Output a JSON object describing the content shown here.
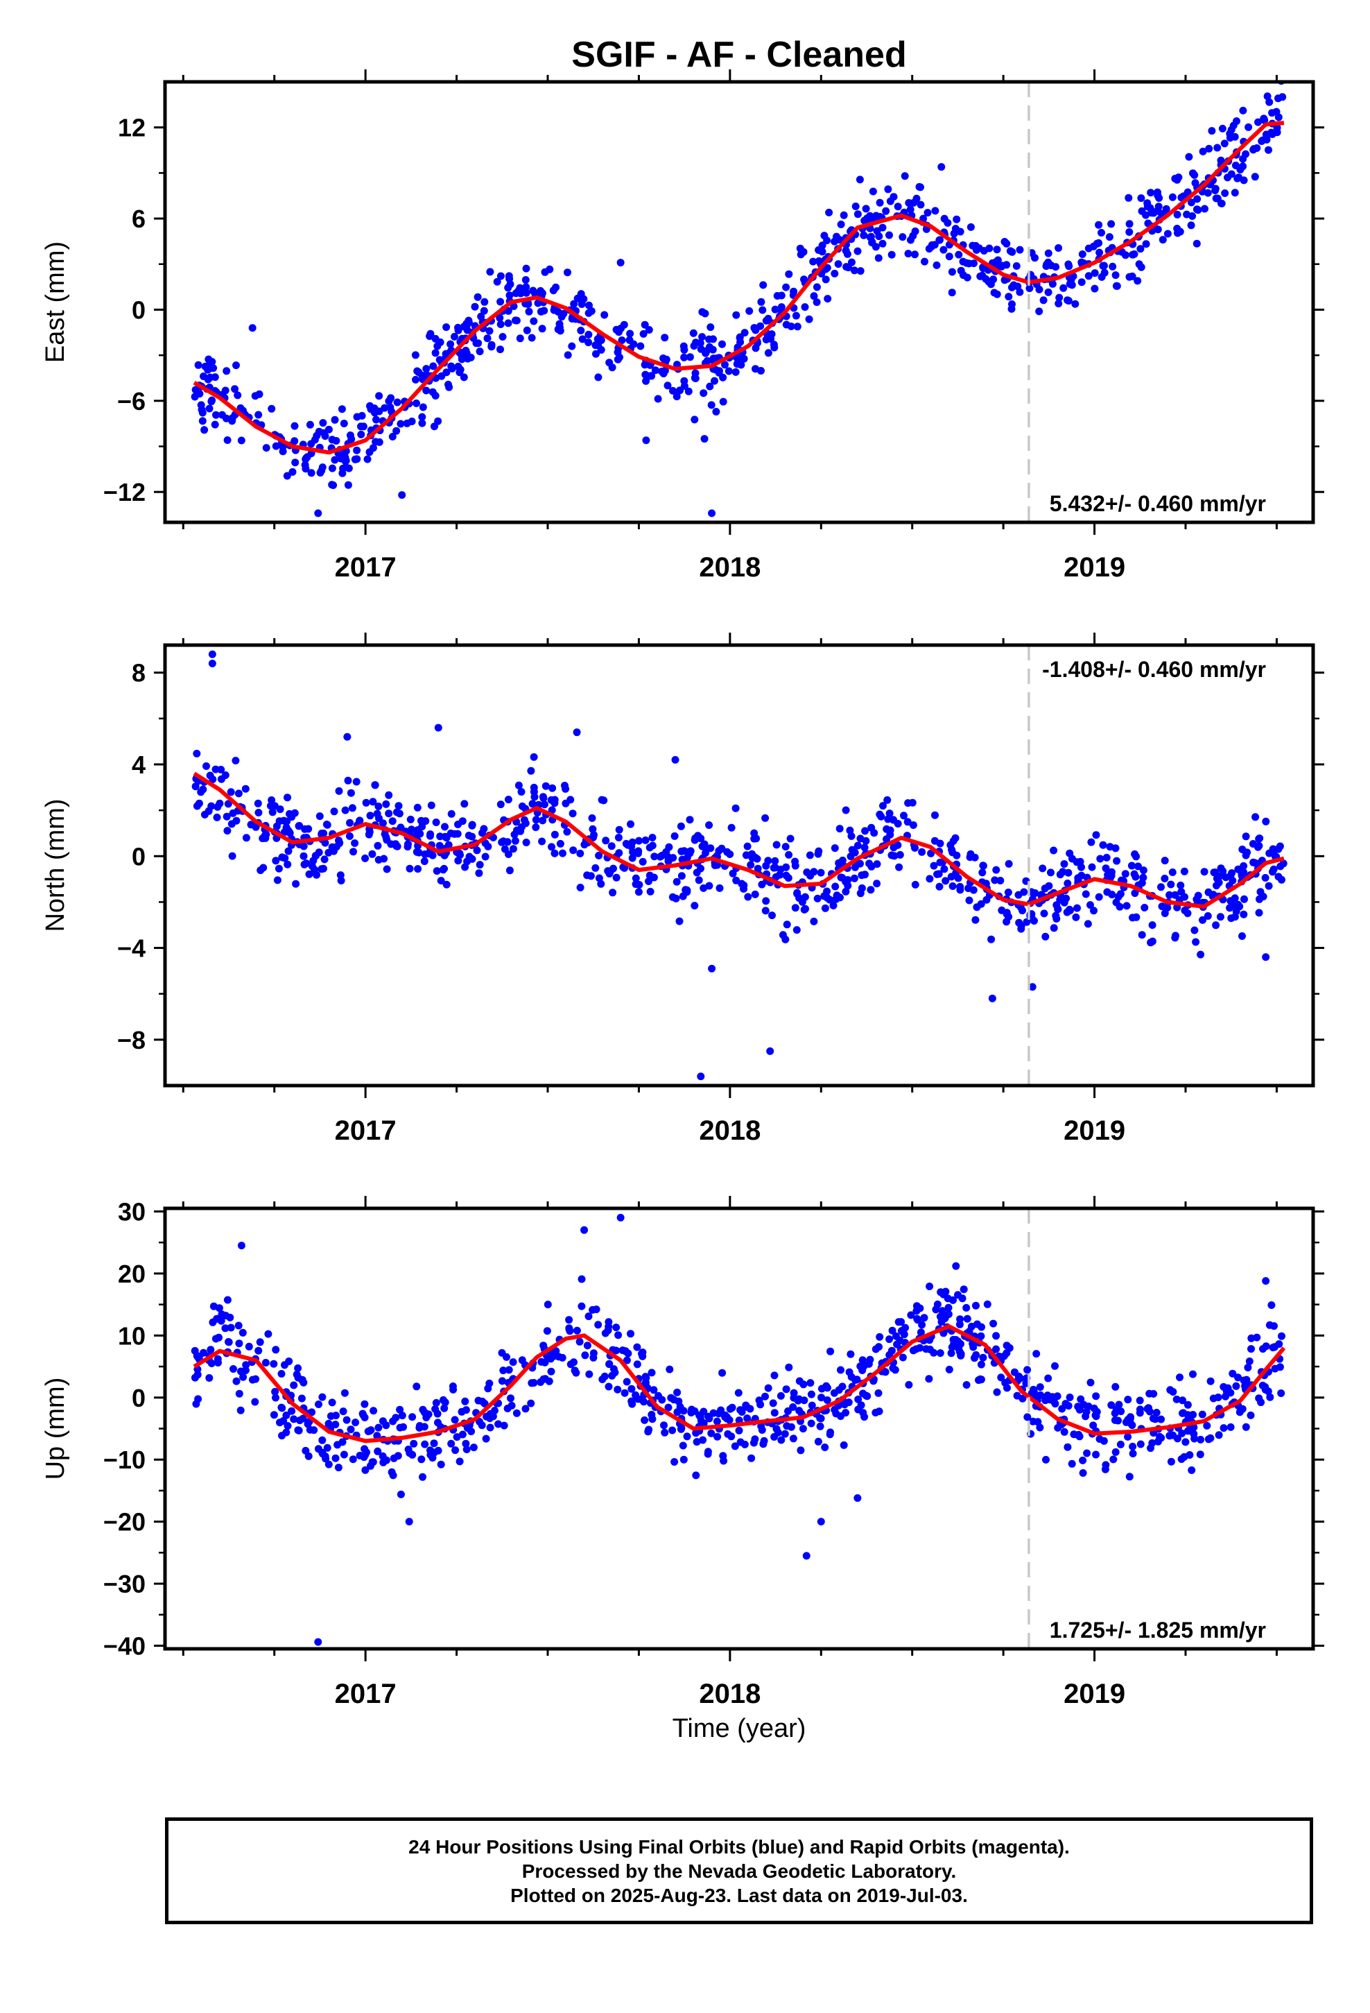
{
  "title": "SGIF  - AF - Cleaned",
  "xlabel": "Time (year)",
  "colors": {
    "points": "#0000ff",
    "fit": "#ff0000",
    "divider": "#c8c8c8",
    "frame": "#000000"
  },
  "footer": {
    "line1": "24 Hour Positions Using Final Orbits (blue) and Rapid Orbits (magenta).",
    "line2": "Processed by the Nevada Geodetic Laboratory.",
    "line3": "Plotted on 2025-Aug-23. Last data on 2019-Jul-03."
  },
  "chart_data": [
    {
      "type": "scatter",
      "ylabel": "East (mm)",
      "xlim": [
        2016.45,
        2019.6
      ],
      "ylim": [
        -14,
        15
      ],
      "yticks": [
        -12,
        -6,
        0,
        6,
        12
      ],
      "xticks": [
        2017,
        2018,
        2019
      ],
      "vline_x": 2018.82,
      "rate_label": "5.432+/- 0.460 mm/yr",
      "rate_position": "bottom-right",
      "series": [
        {
          "role": "fit",
          "x": [
            2016.53,
            2016.6,
            2016.7,
            2016.8,
            2016.9,
            2017.0,
            2017.1,
            2017.2,
            2017.3,
            2017.4,
            2017.47,
            2017.55,
            2017.65,
            2017.75,
            2017.85,
            2017.95,
            2018.05,
            2018.15,
            2018.25,
            2018.35,
            2018.47,
            2018.55,
            2018.65,
            2018.75,
            2018.82,
            2018.9,
            2019.0,
            2019.1,
            2019.2,
            2019.3,
            2019.4,
            2019.47,
            2019.52
          ],
          "y": [
            -4.8,
            -5.8,
            -7.7,
            -9.0,
            -9.4,
            -8.6,
            -6.5,
            -3.9,
            -1.4,
            0.5,
            0.8,
            0.1,
            -1.6,
            -3.1,
            -3.9,
            -3.7,
            -2.4,
            -0.2,
            2.8,
            5.4,
            6.2,
            5.5,
            3.8,
            2.3,
            1.8,
            2.1,
            3.1,
            4.5,
            6.2,
            8.2,
            10.6,
            12.2,
            12.3
          ]
        },
        {
          "role": "observations",
          "trend": "fit",
          "scatter": 1.9,
          "count": 900,
          "outliers": [
            [
              2016.87,
              -13.4
            ],
            [
              2017.1,
              -12.2
            ],
            [
              2017.95,
              -13.4
            ],
            [
              2017.93,
              -8.5
            ],
            [
              2017.77,
              -8.6
            ],
            [
              2016.69,
              -1.2
            ],
            [
              2017.7,
              3.1
            ],
            [
              2018.58,
              9.4
            ],
            [
              2018.48,
              8.8
            ]
          ]
        }
      ]
    },
    {
      "type": "scatter",
      "ylabel": "North (mm)",
      "xlim": [
        2016.45,
        2019.6
      ],
      "ylim": [
        -10,
        9.2
      ],
      "yticks": [
        -8,
        -4,
        0,
        4,
        8
      ],
      "xticks": [
        2017,
        2018,
        2019
      ],
      "vline_x": 2018.82,
      "rate_label": "-1.408+/- 0.460 mm/yr",
      "rate_position": "top-right",
      "series": [
        {
          "role": "fit",
          "x": [
            2016.53,
            2016.6,
            2016.7,
            2016.8,
            2016.9,
            2017.0,
            2017.1,
            2017.2,
            2017.3,
            2017.4,
            2017.47,
            2017.55,
            2017.65,
            2017.75,
            2017.85,
            2017.95,
            2018.05,
            2018.15,
            2018.25,
            2018.35,
            2018.47,
            2018.55,
            2018.65,
            2018.75,
            2018.82,
            2018.9,
            2019.0,
            2019.1,
            2019.2,
            2019.3,
            2019.4,
            2019.47,
            2019.52
          ],
          "y": [
            3.6,
            2.9,
            1.5,
            0.6,
            0.8,
            1.4,
            1.0,
            0.2,
            0.5,
            1.6,
            2.1,
            1.5,
            0.2,
            -0.6,
            -0.4,
            -0.1,
            -0.6,
            -1.3,
            -1.2,
            -0.1,
            0.8,
            0.4,
            -0.9,
            -1.9,
            -2.1,
            -1.6,
            -1.0,
            -1.3,
            -2.0,
            -2.2,
            -1.2,
            -0.3,
            -0.1
          ]
        },
        {
          "role": "observations",
          "trend": "fit",
          "scatter": 1.3,
          "count": 900,
          "outliers": [
            [
              2016.58,
              8.8
            ],
            [
              2016.58,
              8.4
            ],
            [
              2017.92,
              -9.6
            ],
            [
              2018.11,
              -8.5
            ],
            [
              2018.72,
              -6.2
            ],
            [
              2018.83,
              -5.7
            ],
            [
              2017.95,
              -4.9
            ],
            [
              2019.47,
              -4.4
            ],
            [
              2017.2,
              5.6
            ],
            [
              2017.58,
              5.4
            ],
            [
              2016.95,
              5.2
            ],
            [
              2017.85,
              4.2
            ]
          ]
        }
      ]
    },
    {
      "type": "scatter",
      "ylabel": "Up (mm)",
      "xlim": [
        2016.45,
        2019.6
      ],
      "ylim": [
        -40.5,
        30.5
      ],
      "yticks": [
        -40,
        -30,
        -20,
        -10,
        0,
        10,
        20,
        30
      ],
      "xticks": [
        2017,
        2018,
        2019
      ],
      "vline_x": 2018.82,
      "rate_label": "1.725+/- 1.825 mm/yr",
      "rate_position": "bottom-right",
      "series": [
        {
          "role": "fit",
          "x": [
            2016.53,
            2016.6,
            2016.7,
            2016.8,
            2016.9,
            2017.0,
            2017.1,
            2017.2,
            2017.3,
            2017.4,
            2017.47,
            2017.55,
            2017.6,
            2017.7,
            2017.8,
            2017.9,
            2018.0,
            2018.1,
            2018.2,
            2018.3,
            2018.4,
            2018.5,
            2018.6,
            2018.7,
            2018.8,
            2018.9,
            2019.0,
            2019.1,
            2019.2,
            2019.3,
            2019.4,
            2019.47,
            2019.52
          ],
          "y": [
            5.0,
            7.5,
            6.0,
            -1.0,
            -5.5,
            -7.0,
            -6.5,
            -5.5,
            -3.5,
            2.0,
            6.5,
            9.5,
            10.0,
            6.0,
            -1.5,
            -5.0,
            -4.5,
            -3.8,
            -3.2,
            -0.5,
            4.0,
            9.0,
            11.5,
            8.5,
            1.0,
            -3.5,
            -5.8,
            -5.5,
            -4.8,
            -3.8,
            -0.5,
            4.5,
            8.0
          ]
        },
        {
          "role": "observations",
          "trend": "fit",
          "scatter": 5.0,
          "count": 900,
          "outliers": [
            [
              2016.87,
              -39.4
            ],
            [
              2018.21,
              -25.5
            ],
            [
              2018.25,
              -20.0
            ],
            [
              2018.35,
              -16.2
            ],
            [
              2017.7,
              29.0
            ],
            [
              2017.6,
              27.0
            ],
            [
              2016.66,
              24.5
            ],
            [
              2018.62,
              21.2
            ],
            [
              2019.47,
              18.8
            ],
            [
              2017.12,
              -20.0
            ]
          ]
        }
      ]
    }
  ]
}
